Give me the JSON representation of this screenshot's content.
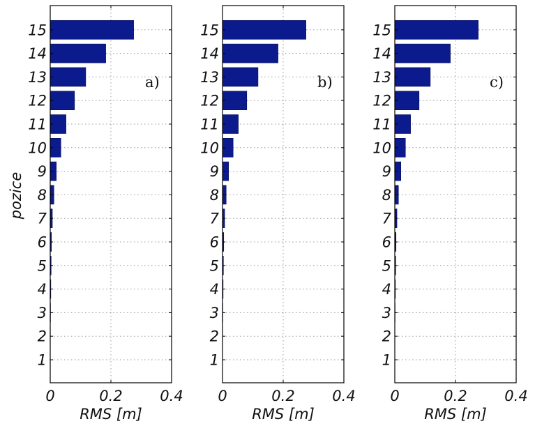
{
  "chart_data": [
    {
      "type": "bar",
      "orientation": "horizontal",
      "panel_label": "a)",
      "categories": [
        "1",
        "2",
        "3",
        "4",
        "5",
        "6",
        "7",
        "8",
        "9",
        "10",
        "11",
        "12",
        "13",
        "14",
        "15"
      ],
      "values": [
        0.0,
        0.0005,
        0.001,
        0.002,
        0.003,
        0.004,
        0.007,
        0.012,
        0.02,
        0.035,
        0.052,
        0.08,
        0.117,
        0.183,
        0.275
      ],
      "xlabel": "RMS [m]",
      "ylabel": "pozice",
      "xlim": [
        0,
        0.4
      ],
      "xticks": [
        "0",
        "0.2",
        "0.4"
      ],
      "grid": true,
      "bar_color": "#0b1a8c"
    },
    {
      "type": "bar",
      "orientation": "horizontal",
      "panel_label": "b)",
      "categories": [
        "1",
        "2",
        "3",
        "4",
        "5",
        "6",
        "7",
        "8",
        "9",
        "10",
        "11",
        "12",
        "13",
        "14",
        "15"
      ],
      "values": [
        0.0,
        0.0005,
        0.001,
        0.002,
        0.003,
        0.004,
        0.007,
        0.012,
        0.02,
        0.035,
        0.052,
        0.08,
        0.117,
        0.183,
        0.275
      ],
      "xlabel": "RMS [m]",
      "ylabel": "",
      "xlim": [
        0,
        0.4
      ],
      "xticks": [
        "0",
        "0.2",
        "0.4"
      ],
      "grid": true,
      "bar_color": "#0b1a8c"
    },
    {
      "type": "bar",
      "orientation": "horizontal",
      "panel_label": "c)",
      "categories": [
        "1",
        "2",
        "3",
        "4",
        "5",
        "6",
        "7",
        "8",
        "9",
        "10",
        "11",
        "12",
        "13",
        "14",
        "15"
      ],
      "values": [
        0.0,
        0.0005,
        0.001,
        0.002,
        0.003,
        0.004,
        0.007,
        0.012,
        0.02,
        0.035,
        0.052,
        0.08,
        0.117,
        0.183,
        0.275
      ],
      "xlabel": "RMS [m]",
      "ylabel": "",
      "xlim": [
        0,
        0.4
      ],
      "xticks": [
        "0",
        "0.2",
        "0.4"
      ],
      "grid": true,
      "bar_color": "#0b1a8c"
    }
  ]
}
